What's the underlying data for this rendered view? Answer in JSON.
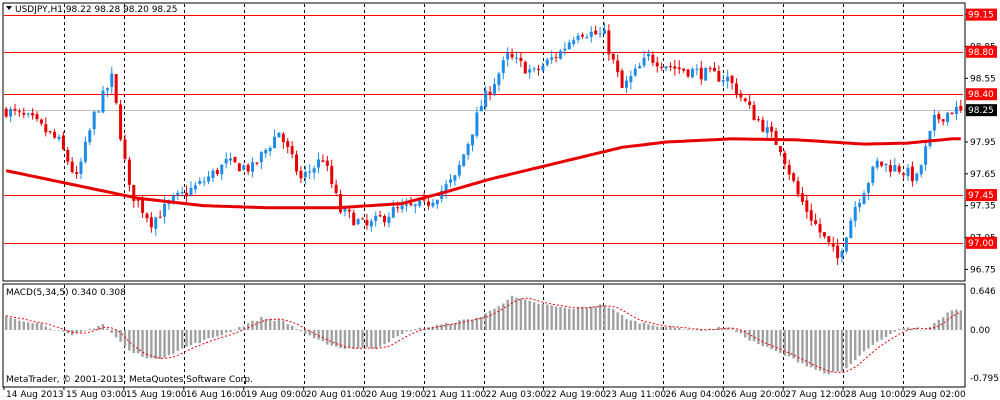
{
  "colors": {
    "background": "#ffffff",
    "frame": "#000000",
    "grid": "#000000",
    "bull_candle": "#1e8ce6",
    "bear_candle": "#e60000",
    "moving_average": "#e60000",
    "level_line": "#ff0000",
    "level_label_bg": "#ff0000",
    "level_label_text": "#ffffff",
    "current_price_bg": "#000000",
    "current_price_text": "#ffffff",
    "macd_histogram": "#a0a0a0",
    "macd_signal": "#e60000"
  },
  "price_panel": {
    "header": "USDJPY,H1  98.22 98.28 98.20 98.25",
    "collapse_icon": "triangle-down-icon",
    "axis_ticks": [
      "99.15",
      "98.85",
      "98.55",
      "98.25",
      "97.95",
      "97.65",
      "97.35",
      "97.05",
      "96.75"
    ],
    "level_labels": [
      "99.15",
      "98.80",
      "98.40",
      "97.45",
      "97.00"
    ],
    "current_price_label": "98.25"
  },
  "macd_panel": {
    "header": "MACD(5,34,5) 0.340 0.308",
    "axis_ticks": [
      "0.646",
      "0.00",
      "-0.795"
    ]
  },
  "time_axis": {
    "labels": [
      "14 Aug 2013",
      "15 Aug 03:00",
      "15 Aug 19:00",
      "16 Aug 16:00",
      "19 Aug 09:00",
      "20 Aug 01:00",
      "20 Aug 19:00",
      "21 Aug 11:00",
      "22 Aug 03:00",
      "22 Aug 19:00",
      "23 Aug 11:00",
      "26 Aug 04:00",
      "26 Aug 20:00",
      "27 Aug 12:00",
      "28 Aug 10:00",
      "29 Aug 02:00"
    ]
  },
  "copyright": "MetaTrader, © 2001-2013, MetaQuotes Software Corp.",
  "chart_data": {
    "type": "candlestick",
    "symbol": "USDJPY",
    "timeframe": "H1",
    "ohlc_last": {
      "open": 98.22,
      "high": 98.28,
      "low": 98.2,
      "close": 98.25
    },
    "price_ylim": [
      96.65,
      99.25
    ],
    "horizontal_levels": [
      99.15,
      98.8,
      98.4,
      97.45,
      97.0
    ],
    "current_price": 98.25,
    "close_path": [
      {
        "bar": 0,
        "price": 98.25
      },
      {
        "bar": 6,
        "price": 98.15
      },
      {
        "bar": 12,
        "price": 97.95
      },
      {
        "bar": 16,
        "price": 97.6
      },
      {
        "bar": 20,
        "price": 98.2
      },
      {
        "bar": 24,
        "price": 98.55
      },
      {
        "bar": 28,
        "price": 97.5
      },
      {
        "bar": 33,
        "price": 97.2
      },
      {
        "bar": 38,
        "price": 97.4
      },
      {
        "bar": 44,
        "price": 97.55
      },
      {
        "bar": 50,
        "price": 97.75
      },
      {
        "bar": 56,
        "price": 97.7
      },
      {
        "bar": 62,
        "price": 98.05
      },
      {
        "bar": 67,
        "price": 97.6
      },
      {
        "bar": 72,
        "price": 97.8
      },
      {
        "bar": 76,
        "price": 97.3
      },
      {
        "bar": 82,
        "price": 97.15
      },
      {
        "bar": 88,
        "price": 97.3
      },
      {
        "bar": 95,
        "price": 97.35
      },
      {
        "bar": 102,
        "price": 97.6
      },
      {
        "bar": 108,
        "price": 98.3
      },
      {
        "bar": 114,
        "price": 98.75
      },
      {
        "bar": 120,
        "price": 98.6
      },
      {
        "bar": 126,
        "price": 98.8
      },
      {
        "bar": 130,
        "price": 99.0
      },
      {
        "bar": 136,
        "price": 98.95
      },
      {
        "bar": 140,
        "price": 98.45
      },
      {
        "bar": 146,
        "price": 98.75
      },
      {
        "bar": 152,
        "price": 98.65
      },
      {
        "bar": 158,
        "price": 98.6
      },
      {
        "bar": 164,
        "price": 98.55
      },
      {
        "bar": 170,
        "price": 98.2
      },
      {
        "bar": 176,
        "price": 97.9
      },
      {
        "bar": 180,
        "price": 97.45
      },
      {
        "bar": 185,
        "price": 97.1
      },
      {
        "bar": 189,
        "price": 96.85
      },
      {
        "bar": 193,
        "price": 97.35
      },
      {
        "bar": 198,
        "price": 97.75
      },
      {
        "bar": 203,
        "price": 97.7
      },
      {
        "bar": 207,
        "price": 97.6
      },
      {
        "bar": 211,
        "price": 98.15
      },
      {
        "bar": 215,
        "price": 98.25
      }
    ],
    "moving_average_path": [
      {
        "bar": 0,
        "price": 97.68
      },
      {
        "bar": 15,
        "price": 97.55
      },
      {
        "bar": 30,
        "price": 97.42
      },
      {
        "bar": 45,
        "price": 97.35
      },
      {
        "bar": 60,
        "price": 97.33
      },
      {
        "bar": 75,
        "price": 97.33
      },
      {
        "bar": 90,
        "price": 97.37
      },
      {
        "bar": 100,
        "price": 97.48
      },
      {
        "bar": 110,
        "price": 97.6
      },
      {
        "bar": 125,
        "price": 97.75
      },
      {
        "bar": 140,
        "price": 97.9
      },
      {
        "bar": 150,
        "price": 97.95
      },
      {
        "bar": 165,
        "price": 97.98
      },
      {
        "bar": 180,
        "price": 97.97
      },
      {
        "bar": 195,
        "price": 97.93
      },
      {
        "bar": 205,
        "price": 97.94
      },
      {
        "bar": 215,
        "price": 97.98
      }
    ],
    "macd": {
      "params": "5,34,5",
      "value": 0.34,
      "signal": 0.308,
      "ylim": [
        -0.795,
        0.646
      ],
      "histogram_path": [
        {
          "bar": 0,
          "value": 0.22
        },
        {
          "bar": 8,
          "value": 0.1
        },
        {
          "bar": 15,
          "value": -0.1
        },
        {
          "bar": 22,
          "value": 0.1
        },
        {
          "bar": 28,
          "value": -0.35
        },
        {
          "bar": 34,
          "value": -0.5
        },
        {
          "bar": 42,
          "value": -0.25
        },
        {
          "bar": 50,
          "value": -0.05
        },
        {
          "bar": 58,
          "value": 0.2
        },
        {
          "bar": 63,
          "value": 0.15
        },
        {
          "bar": 70,
          "value": -0.15
        },
        {
          "bar": 76,
          "value": -0.3
        },
        {
          "bar": 84,
          "value": -0.3
        },
        {
          "bar": 92,
          "value": 0.0
        },
        {
          "bar": 100,
          "value": 0.1
        },
        {
          "bar": 108,
          "value": 0.22
        },
        {
          "bar": 115,
          "value": 0.55
        },
        {
          "bar": 120,
          "value": 0.45
        },
        {
          "bar": 128,
          "value": 0.35
        },
        {
          "bar": 136,
          "value": 0.42
        },
        {
          "bar": 142,
          "value": 0.15
        },
        {
          "bar": 150,
          "value": 0.05
        },
        {
          "bar": 158,
          "value": 0.0
        },
        {
          "bar": 164,
          "value": 0.05
        },
        {
          "bar": 170,
          "value": -0.2
        },
        {
          "bar": 178,
          "value": -0.45
        },
        {
          "bar": 186,
          "value": -0.72
        },
        {
          "bar": 190,
          "value": -0.7
        },
        {
          "bar": 196,
          "value": -0.3
        },
        {
          "bar": 204,
          "value": 0.05
        },
        {
          "bar": 209,
          "value": 0.0
        },
        {
          "bar": 215,
          "value": 0.34
        }
      ]
    }
  }
}
